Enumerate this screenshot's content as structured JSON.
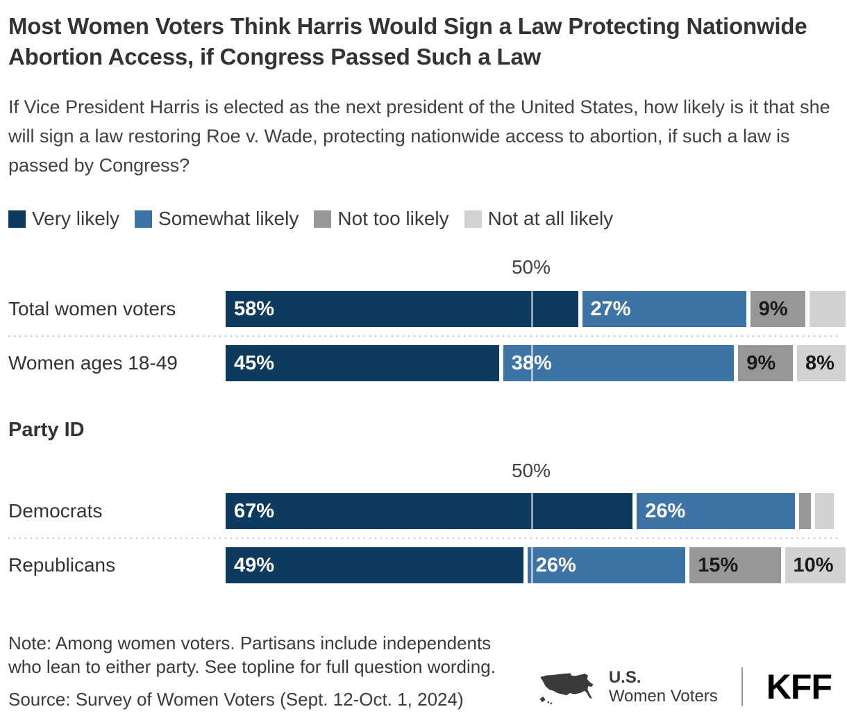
{
  "title": "Most Women Voters Think Harris Would Sign a Law Protecting Nationwide Abortion Access, if Congress Passed Such a Law",
  "subtitle": "If Vice President Harris is elected as the next president of the United States, how likely is it that she will sign a law restoring Roe v. Wade, protecting nationwide access to abortion, if such a law is passed by Congress?",
  "legend": [
    {
      "label": "Very likely",
      "color": "#0d3b5f"
    },
    {
      "label": "Somewhat likely",
      "color": "#3d73a5"
    },
    {
      "label": "Not too likely",
      "color": "#979797"
    },
    {
      "label": "Not at all likely",
      "color": "#d2d2d2"
    }
  ],
  "section_header": "Party ID",
  "chart_data": {
    "type": "bar",
    "orientation": "horizontal",
    "stacked": true,
    "unit": "%",
    "xlim": [
      0,
      100
    ],
    "grid": false,
    "legend_position": "top",
    "reference_line": {
      "value": 50,
      "label": "50%"
    },
    "categories": [
      "Total women voters",
      "Women ages 18-49",
      "Democrats",
      "Republicans"
    ],
    "series": [
      {
        "name": "Very likely",
        "color": "#0d3b5f",
        "values": [
          58,
          45,
          67,
          49
        ]
      },
      {
        "name": "Somewhat likely",
        "color": "#3d73a5",
        "values": [
          27,
          38,
          26,
          26
        ]
      },
      {
        "name": "Not too likely",
        "color": "#979797",
        "values": [
          9,
          9,
          2,
          15
        ]
      },
      {
        "name": "Not at all likely",
        "color": "#d2d2d2",
        "values": [
          6,
          8,
          3,
          10
        ]
      }
    ],
    "value_labels": [
      [
        "58%",
        "27%",
        "9%",
        ""
      ],
      [
        "45%",
        "38%",
        "9%",
        "8%"
      ],
      [
        "67%",
        "26%",
        "",
        ""
      ],
      [
        "49%",
        "26%",
        "15%",
        "10%"
      ]
    ],
    "groups": [
      {
        "header": "",
        "rows": [
          0,
          1
        ]
      },
      {
        "header": "Party ID",
        "rows": [
          2,
          3
        ]
      }
    ]
  },
  "colors": {
    "very_likely": "#0d3b5f",
    "somewhat_likely": "#3d73a5",
    "not_too_likely": "#979797",
    "not_at_all_likely": "#d2d2d2",
    "label_on_dark": "#ffffff",
    "label_on_gray": "#1a1a1a"
  },
  "footer": {
    "note_lines": [
      "Note: Among women voters. Partisans include independents",
      "who lean to either party. See topline for full question wording."
    ],
    "source": "Source: Survey of Women Voters (Sept. 12-Oct. 1, 2024)",
    "brand": {
      "program_top": "U.S.",
      "program_bottom": "Women Voters",
      "logo": "KFF",
      "map_icon": "us-map-icon"
    }
  }
}
